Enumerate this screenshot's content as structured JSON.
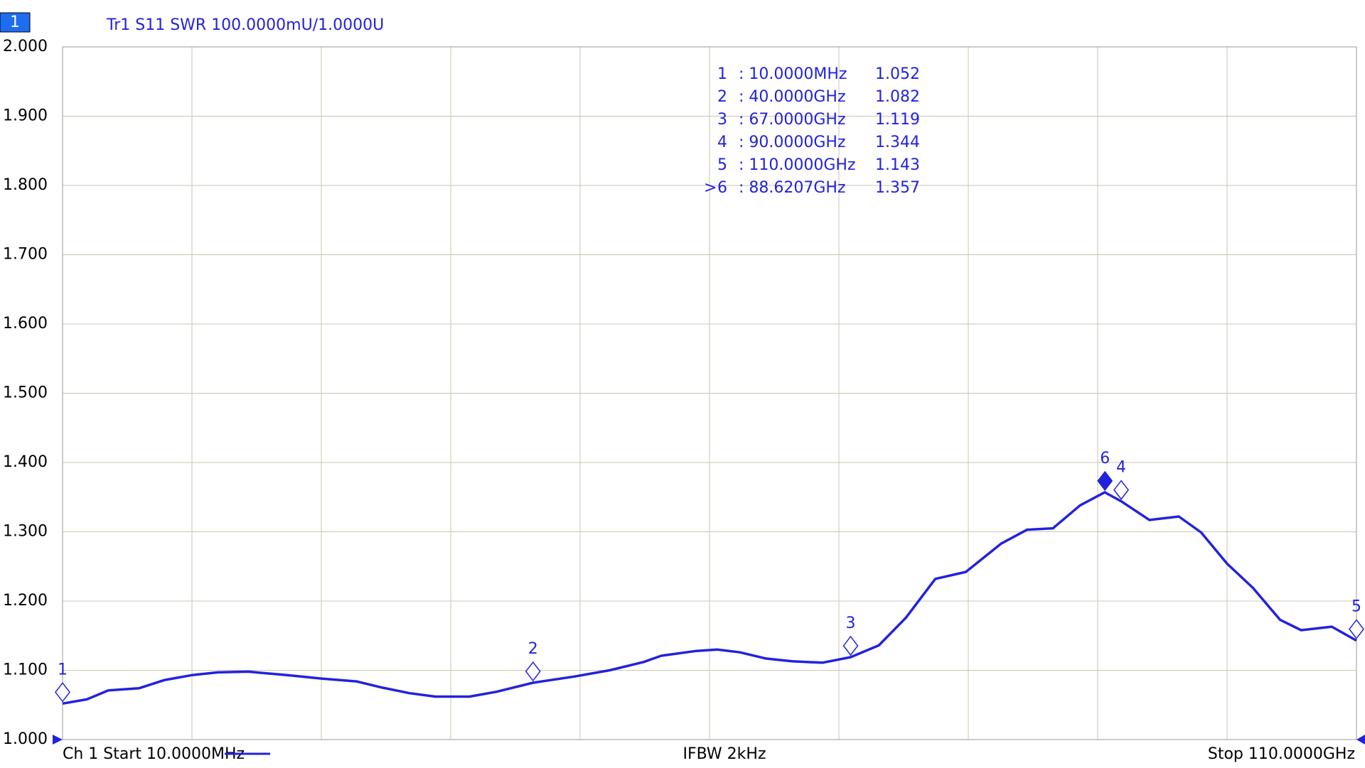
{
  "chart_data": {
    "type": "line",
    "channel_badge": "1",
    "title": "Tr1 S11 SWR 100.0000mU/1.0000U",
    "x": [
      0.01,
      2.07,
      3.9,
      6.5,
      8.7,
      11,
      13.2,
      15.8,
      19.1,
      22.1,
      25,
      27.2,
      29.5,
      31.7,
      34.6,
      36.9,
      40,
      43.5,
      46.5,
      49.4,
      50.9,
      53.9,
      55.7,
      57.6,
      59.8,
      62,
      64.6,
      67,
      69.4,
      71.7,
      74.2,
      76.8,
      79.8,
      82,
      84.2,
      86.5,
      88.6,
      90,
      92.4,
      94.9,
      96.8,
      99,
      101.2,
      103.5,
      105.3,
      107.9,
      110
    ],
    "series": [
      {
        "color": "#2222dd",
        "values": [
          1.052,
          1.058,
          1.071,
          1.074,
          1.086,
          1.093,
          1.097,
          1.098,
          1.093,
          1.088,
          1.084,
          1.075,
          1.067,
          1.062,
          1.062,
          1.069,
          1.082,
          1.091,
          1.1,
          1.112,
          1.121,
          1.128,
          1.13,
          1.126,
          1.117,
          1.113,
          1.111,
          1.119,
          1.136,
          1.176,
          1.232,
          1.242,
          1.283,
          1.303,
          1.305,
          1.338,
          1.357,
          1.344,
          1.317,
          1.322,
          1.299,
          1.254,
          1.219,
          1.173,
          1.158,
          1.163,
          1.143
        ]
      }
    ],
    "xlim": [
      0.01,
      110
    ],
    "ylim": [
      1,
      2
    ],
    "yticks": [
      {
        "value": 1,
        "label": "1.000"
      },
      {
        "value": 1.1,
        "label": "1.100"
      },
      {
        "value": 1.2,
        "label": "1.200"
      },
      {
        "value": 1.3,
        "label": "1.300"
      },
      {
        "value": 1.4,
        "label": "1.400"
      },
      {
        "value": 1.5,
        "label": "1.500"
      },
      {
        "value": 1.6,
        "label": "1.600"
      },
      {
        "value": 1.7,
        "label": "1.700"
      },
      {
        "value": 1.8,
        "label": "1.800"
      },
      {
        "value": 1.9,
        "label": "1.900"
      },
      {
        "value": 2,
        "label": "2.000"
      }
    ],
    "grid": true,
    "x_divisions": 10,
    "active_prefix": ">",
    "markers": [
      {
        "id": "1",
        "x": 0.01,
        "freq": ": 10.0000MHz",
        "value": 1.052,
        "value_label": "1.052",
        "active": false
      },
      {
        "id": "2",
        "x": 40,
        "freq": ": 40.0000GHz",
        "value": 1.082,
        "value_label": "1.082",
        "active": false
      },
      {
        "id": "3",
        "x": 67,
        "freq": ": 67.0000GHz",
        "value": 1.119,
        "value_label": "1.119",
        "active": false
      },
      {
        "id": "4",
        "x": 90,
        "freq": ": 90.0000GHz",
        "value": 1.344,
        "value_label": "1.344",
        "active": false
      },
      {
        "id": "5",
        "x": 110,
        "freq": ": 110.0000GHz",
        "value": 1.143,
        "value_label": "1.143",
        "active": false
      },
      {
        "id": "6",
        "x": 88.6207,
        "freq": ": 88.6207GHz",
        "value": 1.357,
        "value_label": "1.357",
        "active": true
      }
    ],
    "footer": {
      "start": "Ch 1 Start 10.0000MHz",
      "center": "IFBW 2kHz",
      "stop": "Stop 110.0000GHz"
    }
  }
}
